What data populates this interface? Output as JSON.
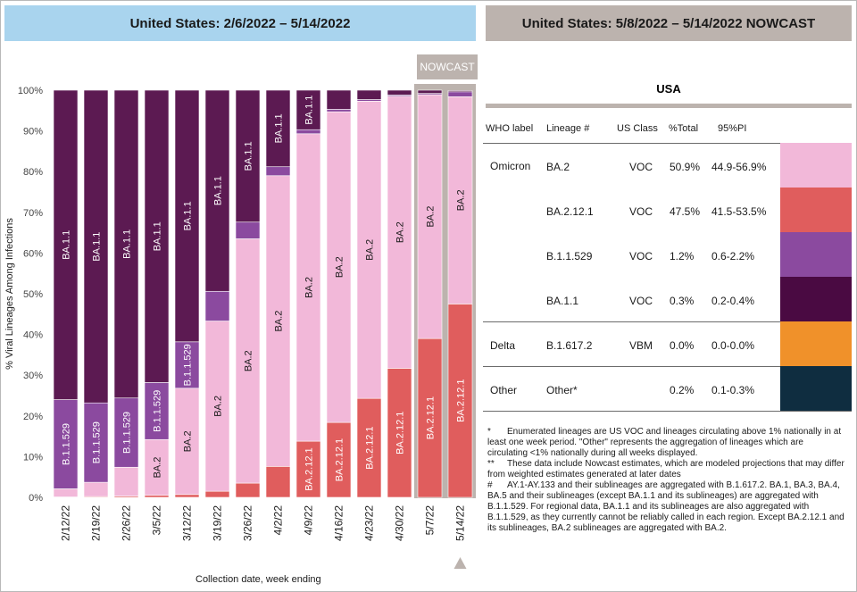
{
  "header_left": "United States: 2/6/2022 – 5/14/2022",
  "header_right": "United States: 5/8/2022 – 5/14/2022 NOWCAST",
  "nowcast_label": "NOWCAST",
  "chart_data": {
    "type": "bar",
    "stacked": true,
    "ylabel": "% Viral Lineages Among Infections",
    "xlabel": "Collection date, week ending",
    "ylim": [
      0,
      100
    ],
    "y_ticks": [
      "0%",
      "10%",
      "20%",
      "30%",
      "40%",
      "50%",
      "60%",
      "70%",
      "80%",
      "90%",
      "100%"
    ],
    "categories": [
      "2/12/22",
      "2/19/22",
      "2/26/22",
      "3/5/22",
      "3/12/22",
      "3/19/22",
      "3/26/22",
      "4/2/22",
      "4/9/22",
      "4/16/22",
      "4/23/22",
      "4/30/22",
      "5/7/22",
      "5/14/22"
    ],
    "nowcast_categories": [
      "5/7/22",
      "5/14/22"
    ],
    "series": [
      {
        "name": "BA.2.12.1",
        "color": "#e05d5d",
        "values": [
          0.1,
          0.2,
          0.3,
          0.5,
          0.7,
          1.5,
          3.5,
          7.6,
          13.8,
          18.4,
          24.3,
          31.7,
          39.0,
          47.5
        ]
      },
      {
        "name": "BA.2",
        "color": "#f2b8d9",
        "values": [
          2.0,
          3.5,
          7.1,
          13.7,
          26.1,
          41.8,
          60.0,
          71.4,
          75.5,
          76.3,
          73.0,
          66.8,
          59.9,
          50.9
        ]
      },
      {
        "name": "B.1.1.529",
        "color": "#8b4a9f",
        "values": [
          21.9,
          19.5,
          17.0,
          14.0,
          11.4,
          7.3,
          4.1,
          2.2,
          1.0,
          0.6,
          0.4,
          0.3,
          0.3,
          1.2
        ]
      },
      {
        "name": "BA.1.1",
        "color": "#5c1a52",
        "values": [
          76.0,
          76.8,
          75.6,
          71.8,
          61.8,
          49.4,
          32.4,
          18.8,
          9.7,
          4.7,
          2.3,
          1.2,
          0.8,
          0.3
        ]
      }
    ],
    "segment_labels": [
      [
        "",
        "",
        "B.1.1.529",
        "BA.1.1"
      ],
      [
        "",
        "",
        "B.1.1.529",
        "BA.1.1"
      ],
      [
        "",
        "",
        "B.1.1.529",
        "BA.1.1"
      ],
      [
        "",
        "BA.2",
        "B.1.1.529",
        "BA.1.1"
      ],
      [
        "",
        "BA.2",
        "B.1.1.529",
        "BA.1.1"
      ],
      [
        "",
        "BA.2",
        "",
        "BA.1.1"
      ],
      [
        "",
        "BA.2",
        "",
        "BA.1.1"
      ],
      [
        "",
        "BA.2",
        "",
        "BA.1.1"
      ],
      [
        "BA.2.12.1",
        "BA.2",
        "",
        "BA.1.1"
      ],
      [
        "BA.2.12.1",
        "BA.2",
        "",
        ""
      ],
      [
        "BA.2.12.1",
        "BA.2",
        "",
        ""
      ],
      [
        "BA.2.12.1",
        "BA.2",
        "",
        ""
      ],
      [
        "BA.2.12.1",
        "BA.2",
        "",
        ""
      ],
      [
        "BA.2.12.1",
        "BA.2",
        "",
        ""
      ]
    ]
  },
  "nowcast_table": {
    "title": "USA",
    "headers": {
      "who": "WHO label",
      "lineage": "Lineage #",
      "class": "US Class",
      "total": "%Total",
      "pi": "95%PI"
    },
    "rows": [
      {
        "who": "Omicron",
        "lineage": "BA.2",
        "class": "VOC",
        "total": "50.9%",
        "pi": "44.9-56.9%",
        "color": "#f2b8d9"
      },
      {
        "who": "",
        "lineage": "BA.2.12.1",
        "class": "VOC",
        "total": "47.5%",
        "pi": "41.5-53.5%",
        "color": "#e05d5d"
      },
      {
        "who": "",
        "lineage": "B.1.1.529",
        "class": "VOC",
        "total": "1.2%",
        "pi": "0.6-2.2%",
        "color": "#8b4a9f"
      },
      {
        "who": "",
        "lineage": "BA.1.1",
        "class": "VOC",
        "total": "0.3%",
        "pi": "0.2-0.4%",
        "color": "#4a0a42"
      },
      {
        "who": "Delta",
        "lineage": "B.1.617.2",
        "class": "VBM",
        "total": "0.0%",
        "pi": "0.0-0.0%",
        "color": "#f0912a"
      },
      {
        "who": "Other",
        "lineage": "Other*",
        "class": "",
        "total": "0.2%",
        "pi": "0.1-0.3%",
        "color": "#0f2d40"
      }
    ]
  },
  "notes": [
    {
      "symbol": "*",
      "text": "Enumerated lineages are US VOC and lineages circulating above 1% nationally in at least one week period. \"Other\" represents the aggregation of lineages which are circulating <1% nationally during all weeks displayed."
    },
    {
      "symbol": "**",
      "text": "These data include Nowcast estimates, which are modeled projections that may differ from weighted estimates generated at later dates"
    },
    {
      "symbol": "#",
      "text": "AY.1-AY.133 and their sublineages are aggregated with B.1.617.2. BA.1, BA.3, BA.4, BA.5 and their sublineages (except BA.1.1 and its sublineages) are aggregated with B.1.1.529. For regional data, BA.1.1 and its sublineages are also aggregated with B.1.1.529, as they currently cannot be reliably called in each region. Except BA.2.12.1 and its sublineages, BA.2 sublineages are aggregated with BA.2."
    }
  ]
}
